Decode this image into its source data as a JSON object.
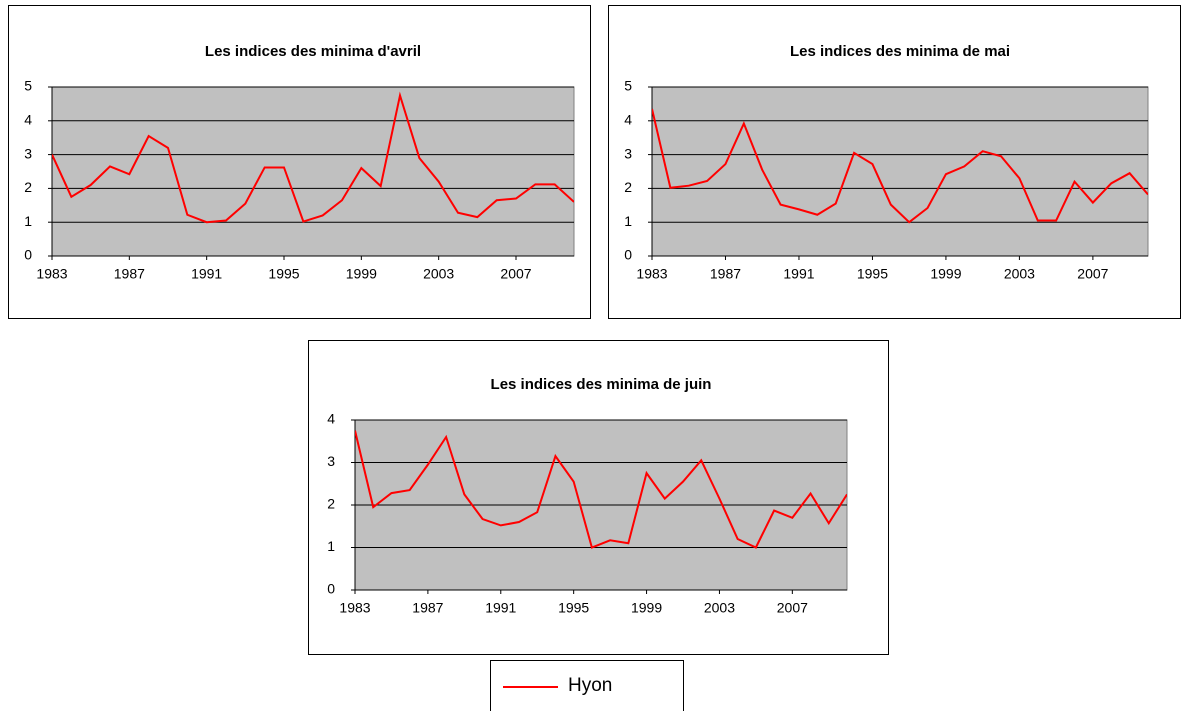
{
  "chart_data": [
    {
      "type": "line",
      "title": "Les indices des minima d'avril",
      "x": [
        1983,
        1984,
        1985,
        1986,
        1987,
        1988,
        1989,
        1990,
        1991,
        1992,
        1993,
        1994,
        1995,
        1996,
        1997,
        1998,
        1999,
        2000,
        2001,
        2002,
        2003,
        2004,
        2005,
        2006,
        2007,
        2008,
        2009,
        2010
      ],
      "series": [
        {
          "name": "Hyon",
          "color": "#ff0000",
          "values": [
            3.0,
            1.75,
            2.1,
            2.65,
            2.42,
            3.55,
            3.2,
            1.22,
            1.0,
            1.05,
            1.55,
            2.62,
            2.62,
            1.02,
            1.2,
            1.65,
            2.6,
            2.07,
            4.75,
            2.9,
            2.2,
            1.28,
            1.15,
            1.65,
            1.7,
            2.12,
            2.12,
            1.6
          ]
        }
      ],
      "xlim": [
        1983,
        2010
      ],
      "xticks": [
        1983,
        1987,
        1991,
        1995,
        1999,
        2003,
        2007
      ],
      "ylim": [
        0,
        5
      ],
      "yticks": [
        0,
        1,
        2,
        3,
        4,
        5
      ],
      "grid": true
    },
    {
      "type": "line",
      "title": "Les indices des minima de mai",
      "x": [
        1983,
        1984,
        1985,
        1986,
        1987,
        1988,
        1989,
        1990,
        1991,
        1992,
        1993,
        1994,
        1995,
        1996,
        1997,
        1998,
        1999,
        2000,
        2001,
        2002,
        2003,
        2004,
        2005,
        2006,
        2007,
        2008,
        2009,
        2010
      ],
      "series": [
        {
          "name": "Hyon",
          "color": "#ff0000",
          "values": [
            4.35,
            2.02,
            2.08,
            2.22,
            2.72,
            3.92,
            2.55,
            1.52,
            1.38,
            1.22,
            1.55,
            3.05,
            2.72,
            1.52,
            1.0,
            1.42,
            2.42,
            2.65,
            3.1,
            2.95,
            2.3,
            1.05,
            1.05,
            2.2,
            1.58,
            2.15,
            2.45,
            1.82
          ]
        }
      ],
      "xlim": [
        1983,
        2010
      ],
      "xticks": [
        1983,
        1987,
        1991,
        1995,
        1999,
        2003,
        2007
      ],
      "ylim": [
        0,
        5
      ],
      "yticks": [
        0,
        1,
        2,
        3,
        4,
        5
      ],
      "grid": true
    },
    {
      "type": "line",
      "title": "Les indices des minima de juin",
      "x": [
        1983,
        1984,
        1985,
        1986,
        1987,
        1988,
        1989,
        1990,
        1991,
        1992,
        1993,
        1994,
        1995,
        1996,
        1997,
        1998,
        1999,
        2000,
        2001,
        2002,
        2003,
        2004,
        2005,
        2006,
        2007,
        2008,
        2009,
        2010
      ],
      "series": [
        {
          "name": "Hyon",
          "color": "#ff0000",
          "values": [
            3.75,
            1.95,
            2.28,
            2.35,
            2.95,
            3.6,
            2.25,
            1.67,
            1.52,
            1.6,
            1.83,
            3.15,
            2.55,
            1.0,
            1.17,
            1.1,
            2.75,
            2.15,
            2.55,
            3.05,
            2.15,
            1.2,
            1.0,
            1.87,
            1.7,
            2.27,
            1.57,
            2.25
          ]
        }
      ],
      "xlim": [
        1983,
        2010
      ],
      "xticks": [
        1983,
        1987,
        1991,
        1995,
        1999,
        2003,
        2007
      ],
      "ylim": [
        0,
        4
      ],
      "yticks": [
        0,
        1,
        2,
        3,
        4
      ],
      "grid": true
    }
  ]
}
